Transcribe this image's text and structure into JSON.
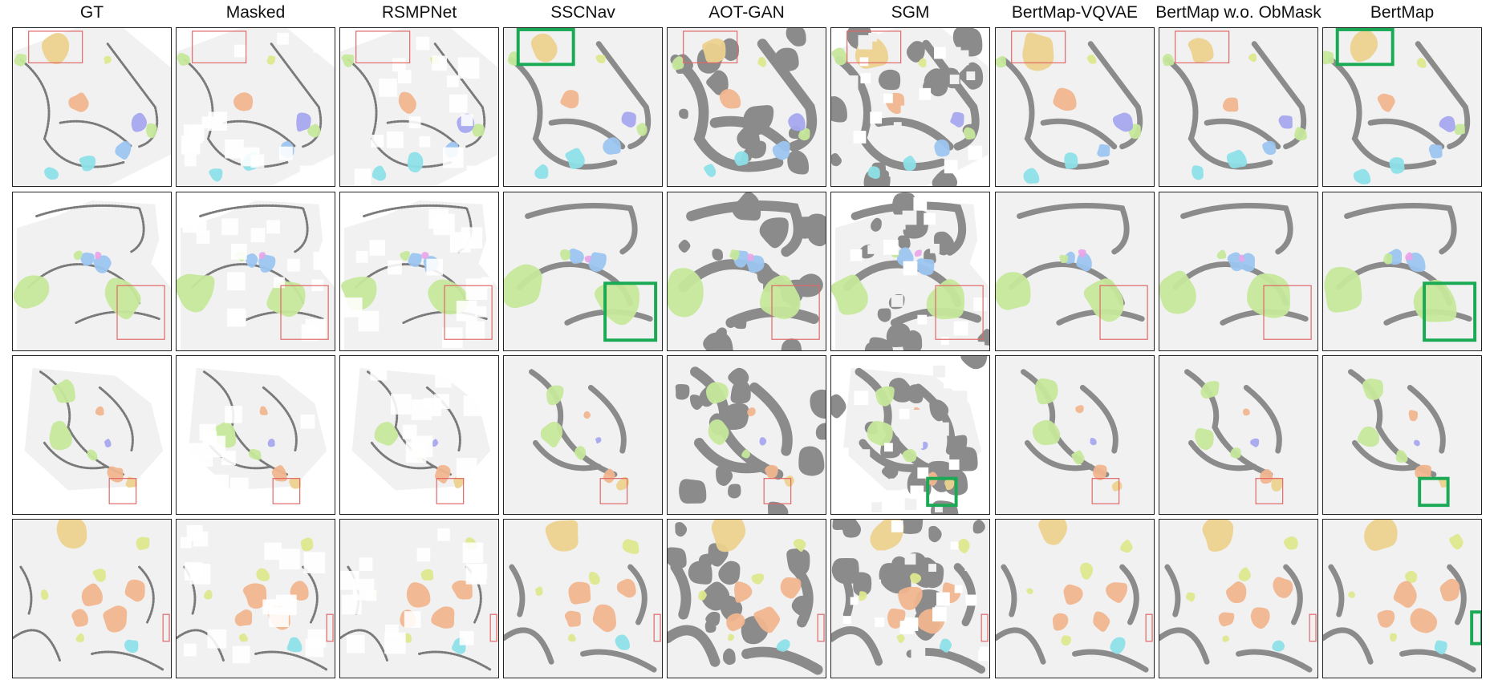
{
  "figure": {
    "columns": [
      "GT",
      "Masked",
      "RSMPNet",
      "SSCNav",
      "AOT-GAN",
      "SGM",
      "BertMap-VQVAE",
      "BertMap w.o. ObMask",
      "BertMap"
    ],
    "rows": 4
  },
  "colors": {
    "floor": "#f1f1f1",
    "obstacle": "#8b8b8b",
    "mask_box": "#e06666",
    "highlight_box": "#1aaa55",
    "semantic": [
      "#ecd28e",
      "#f0b58e",
      "#c5e89a",
      "#9cc5f0",
      "#a6a6ee",
      "#8de0e8",
      "#dde88e",
      "#e8a6e8"
    ]
  }
}
